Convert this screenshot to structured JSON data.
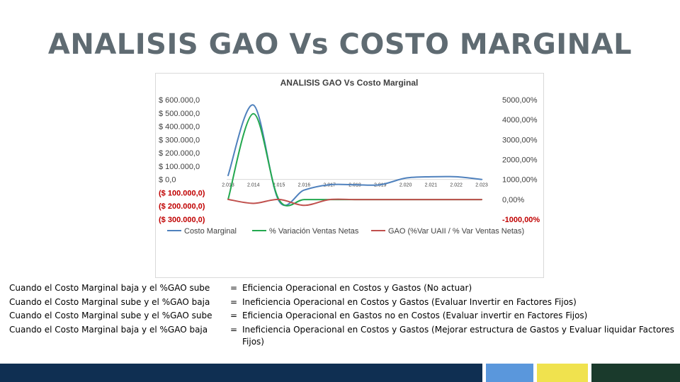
{
  "slide": {
    "title": "ANALISIS GAO Vs COSTO MARGINAL"
  },
  "chart_data": {
    "type": "line",
    "title": "ANALISIS GAO Vs Costo Marginal",
    "categories": [
      "2.013",
      "2.014",
      "2.015",
      "2.016",
      "2.017",
      "2.018",
      "2.019",
      "2.020",
      "2.021",
      "2.022",
      "2.023"
    ],
    "y_left": {
      "ylim": [
        -300000,
        600000
      ],
      "ticks": [
        "$ 600.000,0",
        "$ 500.000,0",
        "$ 400.000,0",
        "$ 300.000,0",
        "$ 200.000,0",
        "$ 100.000,0",
        "$ 0,0",
        "($ 100.000,0)",
        "($ 200.000,0)",
        "($ 300.000,0)"
      ],
      "tick_values": [
        600000,
        500000,
        400000,
        300000,
        200000,
        100000,
        0,
        -100000,
        -200000,
        -300000
      ],
      "negative_color": "#c00000"
    },
    "y_right": {
      "ylim": [
        -1000,
        5000
      ],
      "ticks": [
        "5000,00%",
        "4000,00%",
        "3000,00%",
        "2000,00%",
        "1000,00%",
        "0,00%",
        "-1000,00%"
      ],
      "tick_values": [
        5000,
        4000,
        3000,
        2000,
        1000,
        0,
        -1000
      ],
      "negative_color": "#c00000"
    },
    "series": [
      {
        "name": "Costo Marginal",
        "axis": "left",
        "color": "#4f81bd",
        "values": [
          30000,
          560000,
          -160000,
          -80000,
          -40000,
          -40000,
          -40000,
          10000,
          20000,
          20000,
          0
        ]
      },
      {
        "name": "% Variación Ventas Netas",
        "axis": "right",
        "color": "#23a84f",
        "values": [
          0,
          4300,
          0,
          -10,
          -10,
          -10,
          -10,
          -10,
          -10,
          -10,
          -10
        ]
      },
      {
        "name": "GAO (%Var UAII / % Var Ventas Netas)",
        "axis": "right",
        "color": "#c0504d",
        "values": [
          0,
          -200,
          0,
          -300,
          -10,
          -10,
          -10,
          -10,
          -10,
          -10,
          -10
        ]
      }
    ],
    "legend_position": "bottom",
    "grid": false
  },
  "rules": [
    {
      "condition": "Cuando el Costo Marginal baja  y el %GAO sube",
      "equals": "=",
      "result": "Eficiencia Operacional en Costos y Gastos (No actuar)"
    },
    {
      "condition": "Cuando el Costo Marginal sube y el %GAO baja",
      "equals": "=",
      "result": "Ineficiencia Operacional en Costos y Gastos (Evaluar Invertir en Factores Fijos)"
    },
    {
      "condition": "Cuando el Costo Marginal sube y el %GAO sube",
      "equals": "=",
      "result": "Eficiencia Operacional en Gastos no en Costos (Evaluar invertir en Factores Fijos)"
    },
    {
      "condition": "Cuando el Costo Marginal baja  y el %GAO baja",
      "equals": "=",
      "result": "Ineficiencia Operacional en Costos y Gastos (Mejorar estructura de Gastos y Evaluar liquidar Factores Fijos)"
    }
  ],
  "footer": {
    "colors": [
      "#0f2f52",
      "#5a97dc",
      "#f0e24e",
      "#1a3a2c"
    ]
  }
}
